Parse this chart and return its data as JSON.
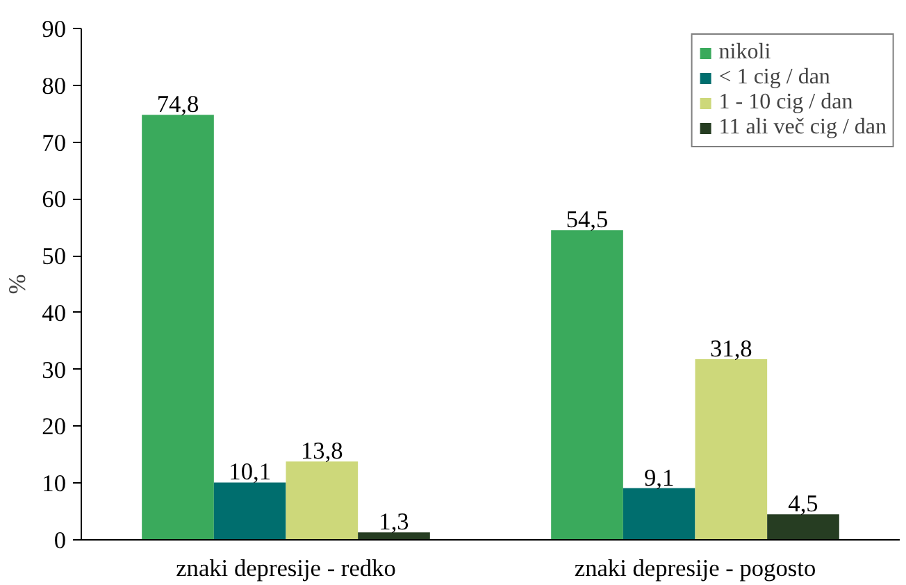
{
  "chart_data": {
    "type": "bar",
    "ylabel": "%",
    "categories": [
      "znaki depresije - redko",
      "znaki depresije - pogosto"
    ],
    "series": [
      {
        "name": "nikoli",
        "color": "#3aaa5c",
        "values": [
          74.8,
          54.5
        ],
        "value_labels": [
          "74,8",
          "54,5"
        ]
      },
      {
        "name": "< 1 cig / dan",
        "color": "#006e6e",
        "values": [
          10.1,
          9.1
        ],
        "value_labels": [
          "10,1",
          "9,1"
        ]
      },
      {
        "name": "1 - 10 cig / dan",
        "color": "#cdd87a",
        "values": [
          13.8,
          31.8
        ],
        "value_labels": [
          "13,8",
          "31,8"
        ]
      },
      {
        "name": "11 ali več cig / dan",
        "color": "#263d22",
        "values": [
          1.3,
          4.5
        ],
        "value_labels": [
          "1,3",
          "4,5"
        ]
      }
    ],
    "ylim": [
      0,
      90
    ],
    "yticks": [
      0,
      10,
      20,
      30,
      40,
      50,
      60,
      70,
      80,
      90
    ],
    "grid": false,
    "legend": "top right"
  }
}
